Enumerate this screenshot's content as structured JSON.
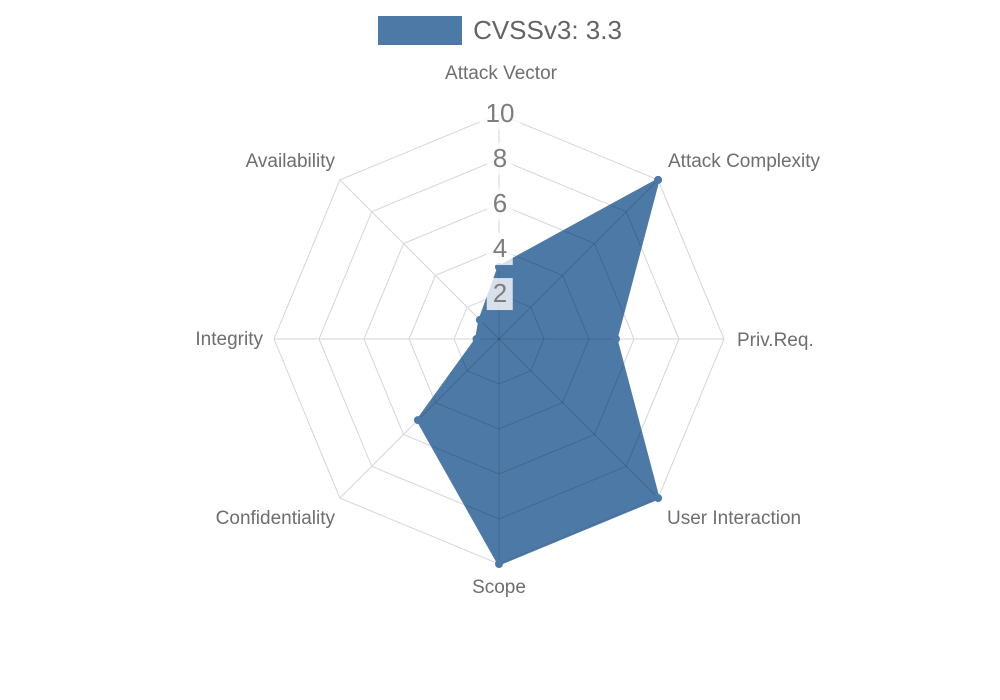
{
  "chart_data": {
    "type": "radar",
    "legend": {
      "label": "CVSSv3: 3.3",
      "color": "#4d79a6"
    },
    "axes": [
      "Attack Vector",
      "Attack Complexity",
      "Priv.Req.",
      "User Interaction",
      "Scope",
      "Confidentiality",
      "Integrity",
      "Availability"
    ],
    "series": [
      {
        "name": "CVSSv3: 3.3",
        "color": "#4d79a6",
        "values": [
          3.2,
          10,
          5.2,
          10,
          10,
          5.1,
          1.0,
          1.2
        ]
      }
    ],
    "scale": {
      "min": 0,
      "max": 10,
      "ticks": [
        2,
        4,
        6,
        8,
        10
      ]
    },
    "grid": {
      "shape": "polygon",
      "color": "#d6d6d6",
      "inner_line_overlay": "rgba(0,0,0,0.14)"
    },
    "colors": {
      "axis_label": "#6e6e6e",
      "tick_label": "#7d7d7d",
      "legend_label": "#636363",
      "background": "#ffffff"
    }
  }
}
